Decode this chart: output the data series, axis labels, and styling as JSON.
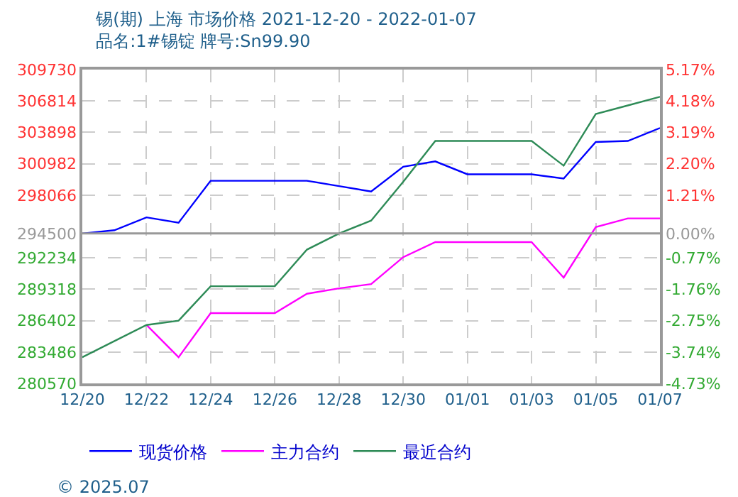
{
  "chart_data": {
    "type": "line",
    "title": "锡(期) 上海 市场价格 2021-12-20 - 2022-01-07",
    "subtitle": "品名:1#锡锭 牌号:Sn99.90",
    "x": [
      "2021-12-20",
      "2021-12-21",
      "2021-12-22",
      "2021-12-23",
      "2021-12-24",
      "2021-12-25",
      "2021-12-26",
      "2021-12-27",
      "2021-12-28",
      "2021-12-29",
      "2021-12-30",
      "2021-12-31",
      "2022-01-01",
      "2022-01-02",
      "2022-01-03",
      "2022-01-04",
      "2022-01-05",
      "2022-01-06",
      "2022-01-07"
    ],
    "series": [
      {
        "name": "现货价格",
        "color": "#0000ff",
        "values": [
          294500,
          294800,
          296000,
          295500,
          299400,
          299400,
          299400,
          299400,
          298900,
          298400,
          300700,
          301200,
          300000,
          300000,
          300000,
          299600,
          303000,
          303100,
          304300
        ]
      },
      {
        "name": "主力合约",
        "color": "#ff00ff",
        "values": [
          null,
          null,
          286000,
          283000,
          287100,
          287100,
          287100,
          288900,
          289400,
          289800,
          292300,
          293700,
          293700,
          293700,
          293700,
          290400,
          295100,
          295900,
          295900
        ]
      },
      {
        "name": "最近合约",
        "color": "#2e8b57",
        "values": [
          283000,
          284500,
          286000,
          286400,
          289600,
          289600,
          289600,
          293000,
          294500,
          295700,
          299300,
          303100,
          303100,
          303100,
          303100,
          300800,
          305600,
          306400,
          307200
        ]
      }
    ],
    "xlim": [
      "2021-12-20",
      "2022-01-07"
    ],
    "xticks": [
      {
        "value": "2021-12-20",
        "label": "12/20"
      },
      {
        "value": "2021-12-22",
        "label": "12/22"
      },
      {
        "value": "2021-12-24",
        "label": "12/24"
      },
      {
        "value": "2021-12-26",
        "label": "12/26"
      },
      {
        "value": "2021-12-28",
        "label": "12/28"
      },
      {
        "value": "2021-12-30",
        "label": "12/30"
      },
      {
        "value": "2022-01-01",
        "label": "01/01"
      },
      {
        "value": "2022-01-03",
        "label": "01/03"
      },
      {
        "value": "2022-01-05",
        "label": "01/05"
      },
      {
        "value": "2022-01-07",
        "label": "01/07"
      }
    ],
    "ylim": [
      280570,
      309730
    ],
    "yticks": [
      280570,
      283486,
      286402,
      289318,
      292234,
      294500,
      298066,
      300982,
      303898,
      306814,
      309730
    ],
    "y2lim": [
      -4.73,
      5.17
    ],
    "y2ticks": [
      {
        "value": -4.73,
        "label": "-4.73%"
      },
      {
        "value": -3.74,
        "label": "-3.74%"
      },
      {
        "value": -2.75,
        "label": "-2.75%"
      },
      {
        "value": -1.76,
        "label": "-1.76%"
      },
      {
        "value": -0.77,
        "label": "-0.77%"
      },
      {
        "value": 0,
        "label": "0.00%"
      },
      {
        "value": 1.21,
        "label": "1.21%"
      },
      {
        "value": 2.2,
        "label": "2.20%"
      },
      {
        "value": 3.19,
        "label": "3.19%"
      },
      {
        "value": 4.18,
        "label": "4.18%"
      },
      {
        "value": 5.17,
        "label": "5.17%"
      }
    ],
    "ref_lines": [
      {
        "axis": "y",
        "value": 294500,
        "color": "#999999"
      }
    ],
    "grid": true,
    "legend": "bottom",
    "marker": "none",
    "line_style": "solid",
    "annotations": [
      "© 2025.07"
    ]
  }
}
